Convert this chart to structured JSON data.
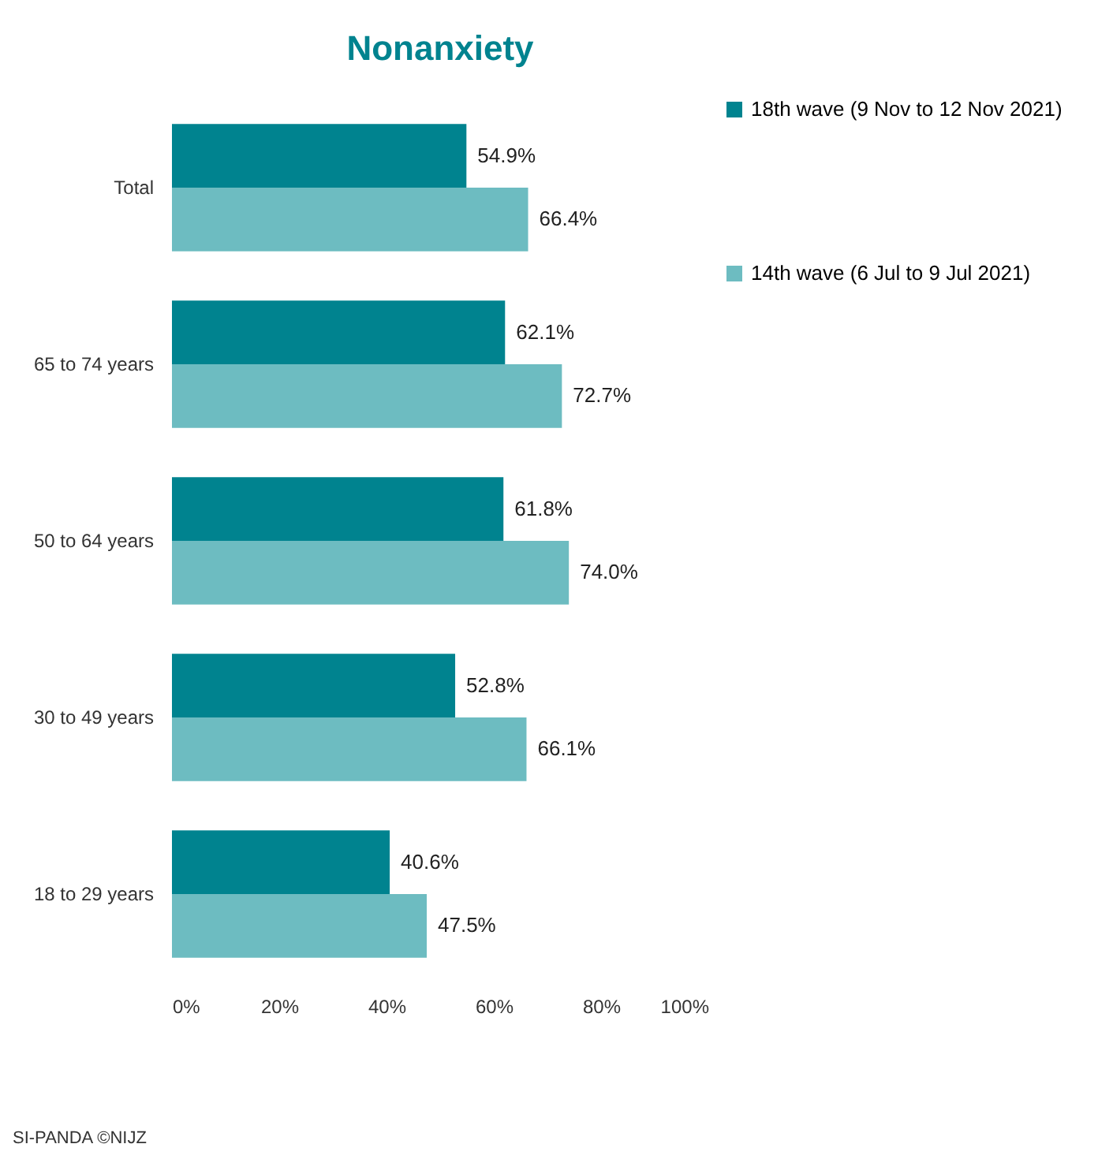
{
  "chart_data": {
    "type": "bar",
    "orientation": "horizontal",
    "title": "Nonanxiety",
    "categories": [
      "Total",
      "65 to 74 years",
      "50 to 64 years",
      "30 to 49 years",
      "18 to 29 years"
    ],
    "series": [
      {
        "name": "18th wave (9 Nov to 12 Nov 2021)",
        "color": "#00838f",
        "values": [
          54.9,
          62.1,
          61.8,
          52.8,
          40.6
        ],
        "value_labels": [
          "54.9%",
          "62.1%",
          "61.8%",
          "52.8%",
          "40.6%"
        ]
      },
      {
        "name": "14th wave (6 Jul to 9 Jul 2021)",
        "color": "#6dbcc1",
        "values": [
          66.4,
          72.7,
          74.0,
          66.1,
          47.5
        ],
        "value_labels": [
          "66.4%",
          "72.7%",
          "74.0%",
          "66.1%",
          "47.5%"
        ]
      }
    ],
    "xlim": [
      0,
      100
    ],
    "xticks": [
      {
        "value": 0,
        "label": "0%"
      },
      {
        "value": 20,
        "label": "20%"
      },
      {
        "value": 40,
        "label": "40%"
      },
      {
        "value": 60,
        "label": "60%"
      },
      {
        "value": 80,
        "label": "80%"
      },
      {
        "value": 100,
        "label": "100%"
      }
    ],
    "grid": false,
    "legend": "right",
    "annotations": [
      "SI-PANDA ©NIJZ"
    ]
  }
}
